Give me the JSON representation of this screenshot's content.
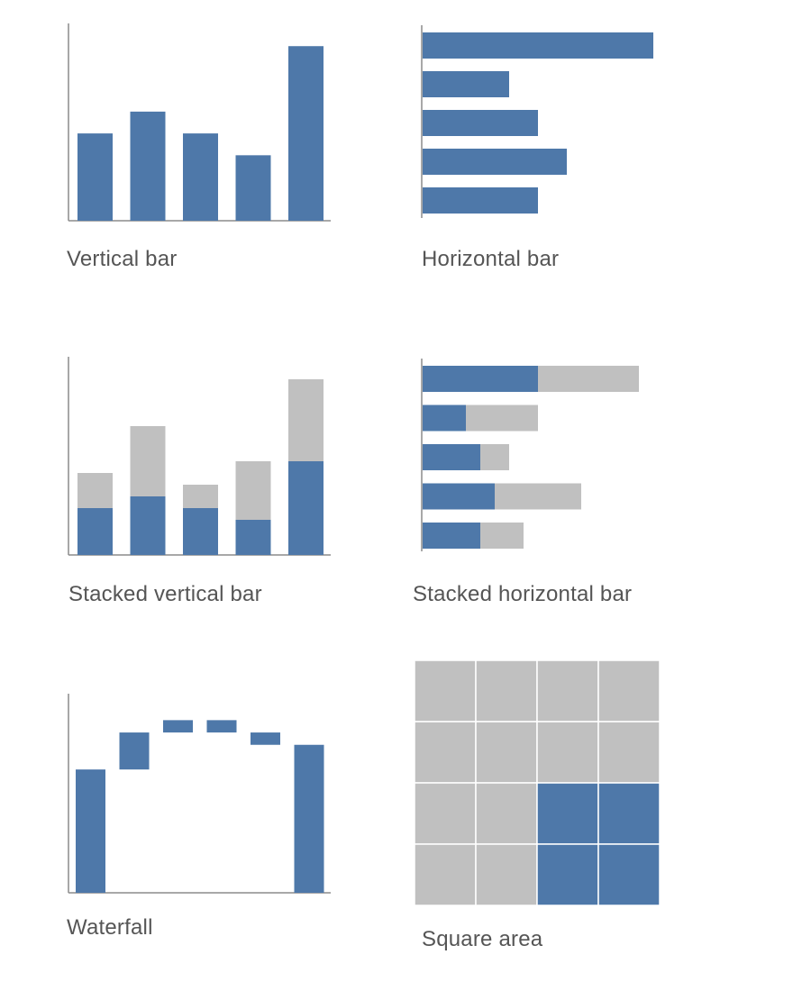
{
  "colors": {
    "primary": "#4e78a9",
    "secondary": "#c0c0c0",
    "axis": "#8c8c8c",
    "grid": "#ffffff",
    "caption": "#555555"
  },
  "chart_data": [
    {
      "id": "vertical-bar",
      "type": "bar",
      "orientation": "vertical",
      "caption": "Vertical bar",
      "values": [
        8,
        10,
        8,
        6,
        16
      ],
      "ylim": [
        0,
        18
      ]
    },
    {
      "id": "horizontal-bar",
      "type": "bar",
      "orientation": "horizontal",
      "caption": "Horizontal bar",
      "values": [
        16,
        6,
        8,
        10,
        8
      ],
      "xlim": [
        0,
        16
      ]
    },
    {
      "id": "stacked-vertical-bar",
      "type": "bar",
      "orientation": "vertical",
      "stacked": true,
      "caption": "Stacked vertical bar",
      "series": [
        {
          "values": [
            4,
            5,
            4,
            3,
            8
          ]
        },
        {
          "values": [
            3,
            6,
            2,
            5,
            7
          ]
        }
      ],
      "ylim": [
        0,
        16
      ]
    },
    {
      "id": "stacked-horizontal-bar",
      "type": "bar",
      "orientation": "horizontal",
      "stacked": true,
      "caption": "Stacked horizontal bar",
      "series": [
        {
          "values": [
            8,
            3,
            4,
            5,
            4
          ]
        },
        {
          "values": [
            7,
            5,
            2,
            6,
            3
          ]
        }
      ],
      "xlim": [
        0,
        15
      ]
    },
    {
      "id": "waterfall",
      "type": "waterfall",
      "caption": "Waterfall",
      "steps": [
        {
          "start": 0,
          "end": 10,
          "kind": "total"
        },
        {
          "start": 10,
          "end": 13,
          "kind": "change"
        },
        {
          "start": 13,
          "end": 14,
          "kind": "change"
        },
        {
          "start": 14,
          "end": 13,
          "kind": "change"
        },
        {
          "start": 13,
          "end": 12,
          "kind": "change"
        },
        {
          "start": 0,
          "end": 12,
          "kind": "total"
        }
      ],
      "ylim": [
        0,
        16
      ]
    },
    {
      "id": "square-area",
      "type": "square_area",
      "caption": "Square area",
      "grid": [
        4,
        4
      ],
      "highlighted_cells": 4,
      "total_cells": 16
    }
  ]
}
